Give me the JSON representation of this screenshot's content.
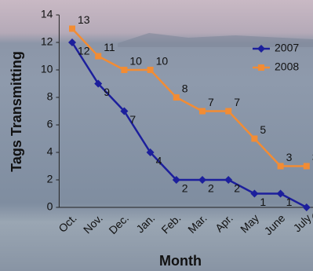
{
  "chart_data": {
    "type": "line",
    "xlabel": "Month",
    "ylabel": "Tags Transmitting",
    "categories": [
      "Oct.",
      "Nov.",
      "Dec.",
      "Jan.",
      "Feb.",
      "Mar.",
      "Apr.",
      "May",
      "June",
      "July"
    ],
    "series": [
      {
        "name": "2007",
        "color": "#1c1f9c",
        "marker": "diamond",
        "values": [
          12,
          9,
          7,
          4,
          2,
          2,
          2,
          1,
          1,
          0
        ]
      },
      {
        "name": "2008",
        "color": "#f28c34",
        "marker": "square",
        "values": [
          13,
          11,
          10,
          10,
          8,
          7,
          7,
          5,
          3,
          3
        ]
      }
    ],
    "ylim": [
      0,
      14
    ],
    "yticks": [
      0,
      2,
      4,
      6,
      8,
      10,
      12,
      14
    ],
    "legend": "upper right",
    "data_labels": true
  }
}
